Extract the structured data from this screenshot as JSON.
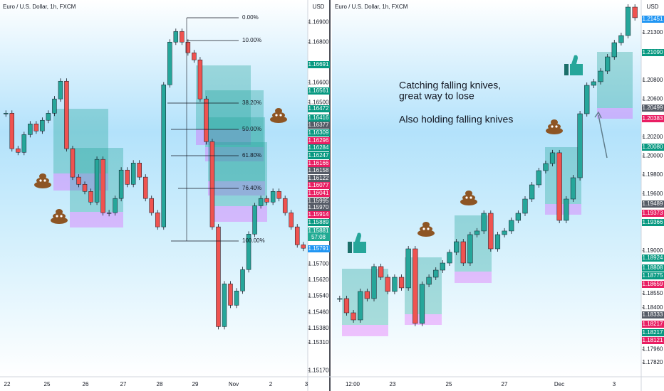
{
  "chart_data": [
    {
      "type": "candlestick",
      "title": "Euro / U.S. Dollar, 1h, FXCM",
      "currency": "USD",
      "ylim": [
        1.1514,
        1.1701
      ],
      "yticks": [
        {
          "value": 1.169,
          "label": "1.16900"
        },
        {
          "value": 1.168,
          "label": "1.16800"
        },
        {
          "value": 1.166,
          "label": "1.16600"
        },
        {
          "value": 1.165,
          "label": "1.16500"
        },
        {
          "value": 1.157,
          "label": "1.15700"
        },
        {
          "value": 1.1562,
          "label": "1.15620"
        },
        {
          "value": 1.1554,
          "label": "1.15540"
        },
        {
          "value": 1.1546,
          "label": "1.15460"
        },
        {
          "value": 1.1538,
          "label": "1.15380"
        },
        {
          "value": 1.1531,
          "label": "1.15310"
        },
        {
          "value": 1.1517,
          "label": "1.15170"
        }
      ],
      "xtick_labels": [
        "22",
        "25",
        "26",
        "27",
        "28",
        "29",
        "Nov",
        "2",
        "3"
      ],
      "values": [
        1.16448,
        1.16272,
        1.16254,
        1.16342,
        1.16395,
        1.1636,
        1.16413,
        1.16448,
        1.16519,
        1.16607,
        1.16272,
        1.16131,
        1.16095,
        1.1606,
        1.16007,
        1.16219,
        1.15954,
        1.15954,
        1.16025,
        1.16166,
        1.16095,
        1.16201,
        1.16131,
        1.16025,
        1.15954,
        1.15884,
        1.16589,
        1.16801,
        1.16854,
        1.16801,
        1.16748,
        1.16713,
        1.16519,
        1.16307,
        1.15884,
        1.15389,
        1.15601,
        1.15495,
        1.15566,
        1.15672,
        1.15848,
        1.15989,
        1.16025,
        1.16007,
        1.1606,
        1.16025,
        1.15954,
        1.15884,
        1.15795,
        1.15778
      ],
      "fib_levels": [
        "0.00%",
        "10.00%",
        "38.20%",
        "50.00%",
        "61.80%",
        "76.40%",
        "100.00%"
      ],
      "badges": [
        {
          "label": "1.16691",
          "color": "#089981"
        },
        {
          "label": "1.16561",
          "color": "#089981"
        },
        {
          "label": "1.16472",
          "color": "#089981"
        },
        {
          "label": "1.16416",
          "color": "#089981"
        },
        {
          "label": "1.16377",
          "color": "#555b66"
        },
        {
          "label": "1.16309",
          "color": "#089981"
        },
        {
          "label": "1.16296",
          "color": "#e91e63"
        },
        {
          "label": "1.16284",
          "color": "#089981"
        },
        {
          "label": "1.16247",
          "color": "#089981"
        },
        {
          "label": "1.16166",
          "color": "#e91e63"
        },
        {
          "label": "1.16158",
          "color": "#555b66"
        },
        {
          "label": "1.16122",
          "color": "#555b66"
        },
        {
          "label": "1.16077",
          "color": "#e91e63"
        },
        {
          "label": "1.16041",
          "color": "#e91e63"
        },
        {
          "label": "1.15995",
          "color": "#555b66"
        },
        {
          "label": "1.15970",
          "color": "#555b66"
        },
        {
          "label": "1.15914",
          "color": "#e91e63"
        },
        {
          "label": "1.15889",
          "color": "#089981"
        },
        {
          "label": "1.15881",
          "color": "#22ab94"
        },
        {
          "label": "57:08",
          "color": "#22ab94"
        },
        {
          "label": "1.15791",
          "color": "#2196f3"
        }
      ]
    },
    {
      "type": "candlestick",
      "title": "Euro / U.S. Dollar, 1h, FXCM",
      "currency": "USD",
      "ylim": [
        1.1767,
        1.21645
      ],
      "yticks": [
        {
          "value": 1.213,
          "label": "1.21300"
        },
        {
          "value": 1.208,
          "label": "1.20800"
        },
        {
          "value": 1.206,
          "label": "1.20600"
        },
        {
          "value": 1.202,
          "label": "1.20200"
        },
        {
          "value": 1.2,
          "label": "1.20000"
        },
        {
          "value": 1.198,
          "label": "1.19800"
        },
        {
          "value": 1.196,
          "label": "1.19600"
        },
        {
          "value": 1.19,
          "label": "1.19000"
        },
        {
          "value": 1.1855,
          "label": "1.18550"
        },
        {
          "value": 1.184,
          "label": "1.18400"
        },
        {
          "value": 1.1796,
          "label": "1.17960"
        },
        {
          "value": 1.1782,
          "label": "1.17820"
        }
      ],
      "xtick_labels": [
        "12:00",
        "23",
        "25",
        "27",
        "Dec",
        "3"
      ],
      "values": [
        1.18495,
        1.18345,
        1.1827,
        1.1857,
        1.18495,
        1.18833,
        1.1872,
        1.1857,
        1.1872,
        1.18608,
        1.1902,
        1.18233,
        1.18645,
        1.1872,
        1.18795,
        1.1887,
        1.18983,
        1.19095,
        1.1887,
        1.1917,
        1.19208,
        1.19395,
        1.1902,
        1.1917,
        1.19208,
        1.1932,
        1.19395,
        1.19545,
        1.19695,
        1.19845,
        1.1992,
        1.20033,
        1.1932,
        1.19545,
        1.1977,
        1.20445,
        1.20745,
        1.20783,
        1.20895,
        1.21045,
        1.21195,
        1.2127,
        1.2157,
        1.21458
      ],
      "badges": [
        {
          "label": "1.21451",
          "color": "#2196f3"
        },
        {
          "label": "1.21090",
          "color": "#089981"
        },
        {
          "label": "1.20499",
          "color": "#555b66"
        },
        {
          "label": "1.20383",
          "color": "#e91e63"
        },
        {
          "label": "1.20080",
          "color": "#089981"
        },
        {
          "label": "1.19489",
          "color": "#555b66"
        },
        {
          "label": "1.19373",
          "color": "#e91e63"
        },
        {
          "label": "1.19366",
          "color": "#089981"
        },
        {
          "label": "1.18924",
          "color": "#089981"
        },
        {
          "label": "1.18808",
          "color": "#089981"
        },
        {
          "label": "1.18775",
          "color": "#089981"
        },
        {
          "label": "1.18659",
          "color": "#e91e63"
        },
        {
          "label": "1.18333",
          "color": "#555b66"
        },
        {
          "label": "1.18217",
          "color": "#e91e63"
        },
        {
          "label": "1.18217",
          "color": "#089981"
        },
        {
          "label": "1.18121",
          "color": "#e91e63"
        }
      ]
    }
  ],
  "annotations": [
    "Catching falling knives,",
    "great way to lose",
    "Also holding falling knives"
  ]
}
